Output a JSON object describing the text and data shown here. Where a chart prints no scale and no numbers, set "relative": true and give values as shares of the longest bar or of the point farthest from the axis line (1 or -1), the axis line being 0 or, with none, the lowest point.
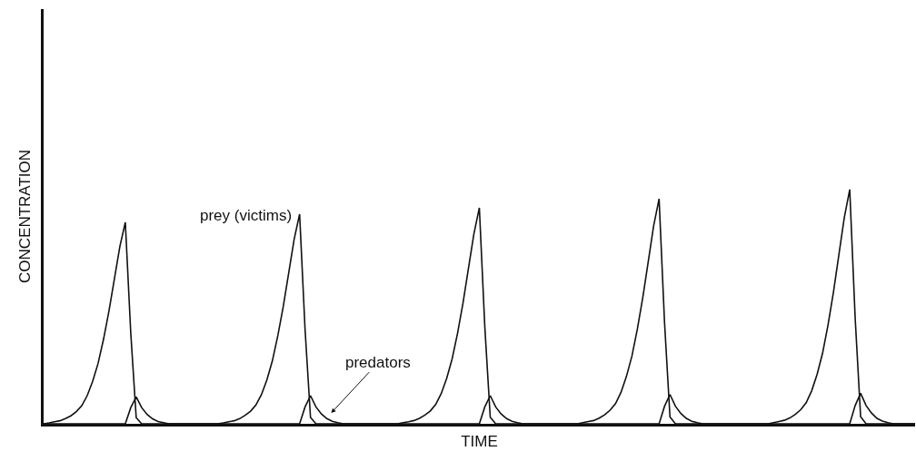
{
  "chart_data": {
    "type": "line",
    "relative": true,
    "xlabel": "TIME",
    "ylabel": "CONCENTRATION",
    "legend": false,
    "marker": "none",
    "line_style": "solid",
    "categories": [
      null,
      null,
      null,
      null,
      null,
      null,
      null,
      null,
      null,
      null,
      null,
      null,
      null,
      null,
      null,
      null,
      null,
      null,
      null,
      null,
      null,
      null,
      null,
      null,
      null,
      null,
      null,
      null,
      null,
      null,
      null,
      null,
      null,
      null,
      null,
      null,
      null,
      null,
      null,
      null,
      null,
      null,
      null,
      null,
      null,
      null,
      null,
      null,
      null,
      null,
      null,
      null,
      null,
      null,
      null,
      null,
      null,
      null,
      null,
      null,
      null,
      null,
      null,
      null,
      null,
      null,
      null,
      null,
      null,
      null,
      null,
      null,
      null,
      null,
      null,
      null,
      null,
      null,
      null,
      null,
      null,
      null,
      null,
      null,
      null,
      null,
      null,
      null,
      null,
      null,
      null,
      null,
      null,
      null,
      null,
      null,
      null,
      null,
      null,
      null,
      null,
      null,
      null,
      null,
      null,
      null,
      null,
      null,
      null,
      null,
      null,
      null,
      null,
      null,
      null,
      null,
      null,
      null,
      null,
      null,
      null,
      null,
      null,
      null,
      null,
      null,
      null,
      null,
      null,
      null,
      null,
      null,
      null,
      null,
      null,
      null,
      null,
      null,
      null,
      null,
      null,
      null,
      null,
      null,
      null,
      null,
      null,
      null,
      null,
      null,
      null,
      null,
      null,
      null,
      null,
      null,
      null,
      null,
      null,
      null,
      null
    ],
    "series": [
      {
        "name": "prey (victims)",
        "color": "#111111",
        "values": [
          0,
          0.004,
          0.009,
          0.013,
          0.022,
          0.034,
          0.052,
          0.077,
          0.12,
          0.181,
          0.258,
          0.361,
          0.482,
          0.619,
          0.757,
          0.86,
          0.387,
          0.026,
          0,
          0,
          0,
          0,
          0,
          0,
          0,
          0,
          0,
          0,
          0,
          0,
          0,
          0,
          0,
          0.004,
          0.009,
          0.013,
          0.022,
          0.036,
          0.054,
          0.081,
          0.125,
          0.188,
          0.269,
          0.376,
          0.501,
          0.644,
          0.788,
          0.895,
          0.403,
          0.027,
          0,
          0,
          0,
          0,
          0,
          0,
          0,
          0,
          0,
          0,
          0,
          0,
          0,
          0,
          0,
          0,
          0.005,
          0.009,
          0.014,
          0.023,
          0.037,
          0.055,
          0.083,
          0.129,
          0.194,
          0.277,
          0.387,
          0.516,
          0.664,
          0.811,
          0.922,
          0.415,
          0.028,
          0,
          0,
          0,
          0,
          0,
          0,
          0,
          0,
          0,
          0,
          0,
          0,
          0,
          0,
          0,
          0,
          0.005,
          0.01,
          0.014,
          0.024,
          0.038,
          0.058,
          0.086,
          0.134,
          0.202,
          0.288,
          0.403,
          0.538,
          0.691,
          0.845,
          0.96,
          0.432,
          0.029,
          0,
          0,
          0,
          0,
          0,
          0,
          0,
          0,
          0,
          0,
          0,
          0,
          0,
          0,
          0,
          0,
          0,
          0,
          0.005,
          0.01,
          0.015,
          0.025,
          0.04,
          0.06,
          0.09,
          0.14,
          0.21,
          0.3,
          0.42,
          0.56,
          0.72,
          0.88,
          1,
          0.45,
          0.03,
          0,
          0,
          0,
          0,
          0,
          0,
          0,
          0,
          0,
          0
        ]
      },
      {
        "name": "predators",
        "color": "#111111",
        "values": [
          0,
          0,
          0,
          0,
          0,
          0,
          0,
          0,
          0,
          0,
          0,
          0,
          0,
          0,
          0,
          0,
          0.069,
          0.115,
          0.069,
          0.04,
          0.021,
          0.01,
          0.005,
          0,
          0,
          0,
          0,
          0,
          0,
          0,
          0,
          0,
          0,
          0,
          0,
          0,
          0,
          0,
          0,
          0,
          0,
          0,
          0,
          0,
          0,
          0,
          0,
          0,
          0.072,
          0.12,
          0.072,
          0.042,
          0.022,
          0.011,
          0.005,
          0,
          0,
          0,
          0,
          0,
          0,
          0,
          0,
          0,
          0,
          0,
          0,
          0,
          0,
          0,
          0,
          0,
          0,
          0,
          0,
          0,
          0,
          0,
          0,
          0,
          0,
          0.072,
          0.12,
          0.072,
          0.042,
          0.022,
          0.011,
          0.005,
          0,
          0,
          0,
          0,
          0,
          0,
          0,
          0,
          0,
          0,
          0,
          0,
          0,
          0,
          0,
          0,
          0,
          0,
          0,
          0,
          0,
          0,
          0,
          0,
          0,
          0,
          0.075,
          0.125,
          0.075,
          0.044,
          0.023,
          0.011,
          0.005,
          0,
          0,
          0,
          0,
          0,
          0,
          0,
          0,
          0,
          0,
          0,
          0,
          0,
          0,
          0,
          0,
          0,
          0,
          0,
          0,
          0,
          0,
          0,
          0,
          0,
          0,
          0,
          0,
          0.078,
          0.13,
          0.078,
          0.046,
          0.023,
          0.012,
          0.005,
          0,
          0,
          0,
          0,
          0
        ]
      }
    ]
  }
}
